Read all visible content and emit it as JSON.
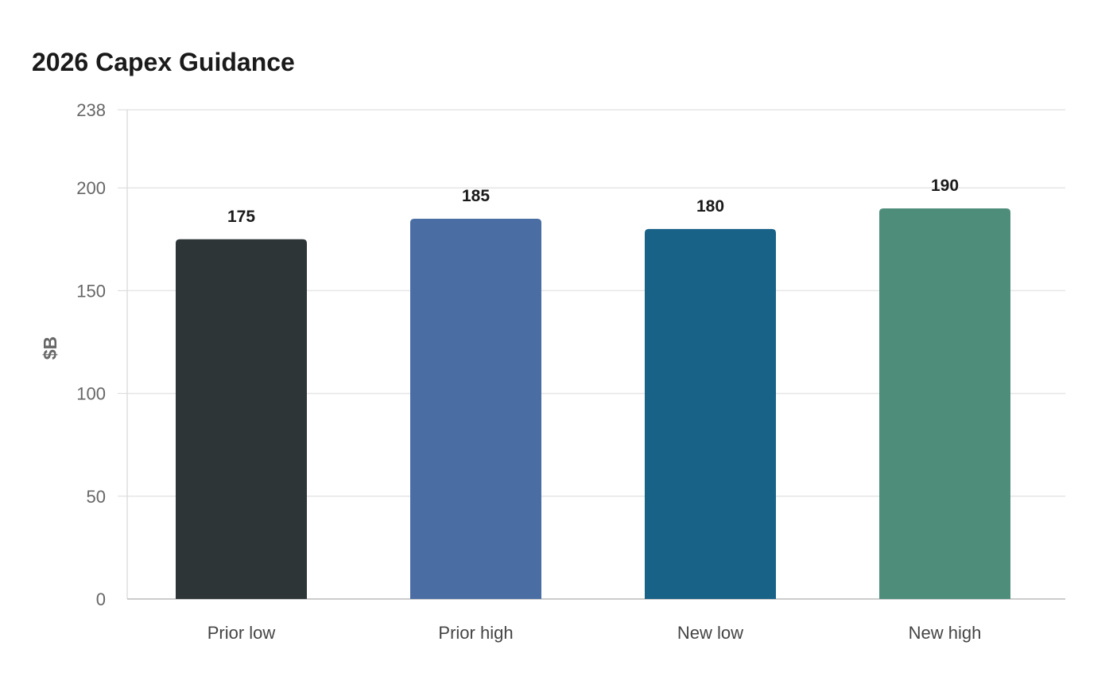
{
  "chart_data": {
    "type": "bar",
    "title": "2026 Capex Guidance",
    "xlabel": "",
    "ylabel": "$B",
    "categories": [
      "Prior low",
      "Prior high",
      "New low",
      "New high"
    ],
    "values": [
      175,
      185,
      180,
      190
    ],
    "value_labels": [
      "175",
      "185",
      "180",
      "190"
    ],
    "ylim": [
      0,
      238
    ],
    "yticks": [
      0,
      50,
      100,
      150,
      200,
      238
    ],
    "ytick_labels": [
      "0",
      "50",
      "100",
      "150",
      "200",
      "238"
    ],
    "bar_colors": [
      "#2e3537",
      "#4a6ea3",
      "#186187",
      "#4f8d7b"
    ],
    "grid": true,
    "legend": "none"
  }
}
